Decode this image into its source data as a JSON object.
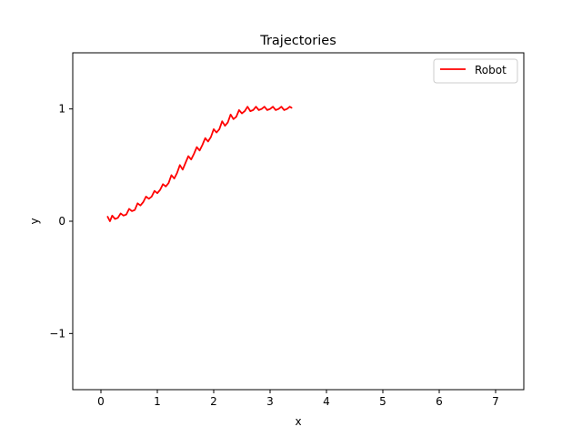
{
  "chart_data": {
    "type": "line",
    "title": "Trajectories",
    "xlabel": "x",
    "ylabel": "y",
    "xlim": [
      -0.5,
      7.5
    ],
    "ylim": [
      -1.5,
      1.5
    ],
    "xticks": [
      0,
      1,
      2,
      3,
      4,
      5,
      6,
      7
    ],
    "yticks": [
      -1,
      0,
      1
    ],
    "xtick_labels": [
      "0",
      "1",
      "2",
      "3",
      "4",
      "5",
      "6",
      "7"
    ],
    "ytick_labels": [
      "−1",
      "0",
      "1"
    ],
    "grid": false,
    "legend": {
      "position": "top-right",
      "entries": [
        "Robot"
      ]
    },
    "series": [
      {
        "name": "Robot",
        "color": "#ff0000",
        "x": [
          0.12,
          0.16,
          0.2,
          0.25,
          0.3,
          0.35,
          0.4,
          0.45,
          0.5,
          0.55,
          0.6,
          0.65,
          0.7,
          0.75,
          0.8,
          0.85,
          0.9,
          0.95,
          1.0,
          1.05,
          1.1,
          1.15,
          1.2,
          1.25,
          1.3,
          1.35,
          1.4,
          1.45,
          1.5,
          1.55,
          1.6,
          1.65,
          1.7,
          1.75,
          1.8,
          1.85,
          1.9,
          1.95,
          2.0,
          2.05,
          2.1,
          2.15,
          2.2,
          2.25,
          2.3,
          2.35,
          2.4,
          2.45,
          2.5,
          2.55,
          2.6,
          2.65,
          2.7,
          2.75,
          2.8,
          2.85,
          2.9,
          2.95,
          3.0,
          3.05,
          3.1,
          3.15,
          3.2,
          3.25,
          3.3,
          3.35,
          3.38
        ],
        "y": [
          0.04,
          0.0,
          0.05,
          0.02,
          0.03,
          0.07,
          0.05,
          0.06,
          0.11,
          0.09,
          0.1,
          0.16,
          0.14,
          0.17,
          0.22,
          0.2,
          0.22,
          0.27,
          0.25,
          0.28,
          0.33,
          0.31,
          0.34,
          0.41,
          0.38,
          0.43,
          0.5,
          0.46,
          0.52,
          0.58,
          0.55,
          0.6,
          0.66,
          0.63,
          0.68,
          0.74,
          0.71,
          0.75,
          0.82,
          0.79,
          0.82,
          0.89,
          0.85,
          0.88,
          0.95,
          0.91,
          0.93,
          0.99,
          0.96,
          0.98,
          1.02,
          0.98,
          0.99,
          1.02,
          0.99,
          1.0,
          1.02,
          0.99,
          1.0,
          1.02,
          0.99,
          1.0,
          1.02,
          0.99,
          1.0,
          1.02,
          1.01
        ]
      }
    ]
  }
}
